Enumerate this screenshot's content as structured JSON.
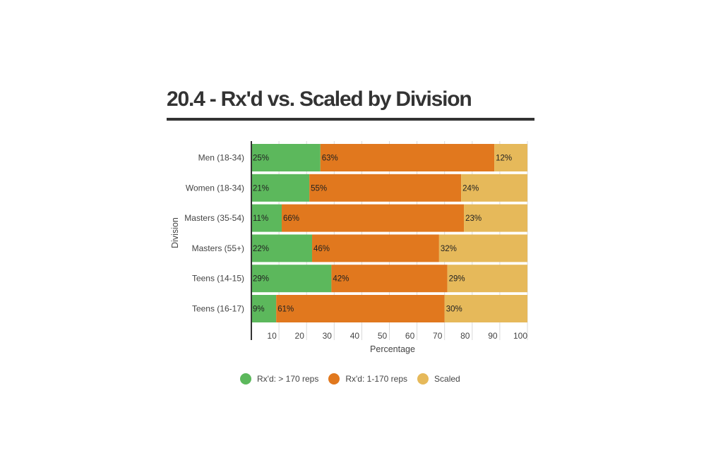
{
  "title": "20.4 - Rx'd vs. Scaled by Division",
  "chart_data": {
    "type": "bar",
    "orientation": "horizontal",
    "stacked": true,
    "xlabel": "Percentage",
    "ylabel": "Division",
    "xlim": [
      0,
      100
    ],
    "xticks": [
      10,
      20,
      30,
      40,
      50,
      60,
      70,
      80,
      90,
      100
    ],
    "grid": true,
    "legend_position": "bottom",
    "categories": [
      "Men (18-34)",
      "Women (18-34)",
      "Masters (35-54)",
      "Masters (55+)",
      "Teens (14-15)",
      "Teens (16-17)"
    ],
    "series": [
      {
        "name": "Rx'd: > 170 reps",
        "color": "#5cb85c",
        "values": [
          25,
          21,
          11,
          22,
          29,
          9
        ]
      },
      {
        "name": "Rx'd: 1-170 reps",
        "color": "#e1781e",
        "values": [
          63,
          55,
          66,
          46,
          42,
          61
        ]
      },
      {
        "name": "Scaled",
        "color": "#e6b95a",
        "values": [
          12,
          24,
          23,
          32,
          29,
          30
        ]
      }
    ]
  }
}
